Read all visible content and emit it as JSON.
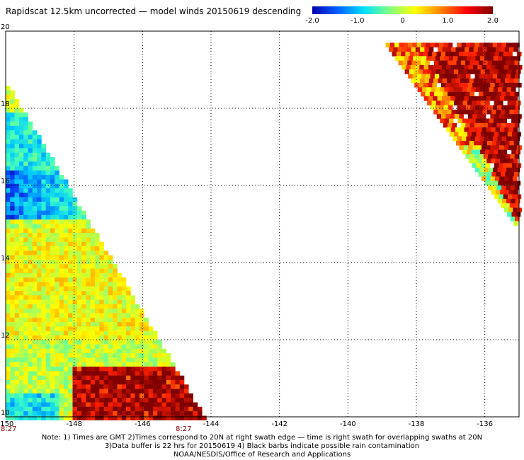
{
  "title": "Rapidscat 12.5km uncorrected — model winds 20150619 descending",
  "colorbar": {
    "ticks": [
      "-2.0",
      "-1.0",
      "0",
      "1.0",
      "2.0"
    ],
    "range": [
      -2.0,
      2.0
    ],
    "colors": [
      "#0000b0",
      "#0060ff",
      "#00e0ff",
      "#80ff80",
      "#ffff00",
      "#ff8000",
      "#ff0000",
      "#800000"
    ]
  },
  "map": {
    "lon_range": [
      -150,
      -135
    ],
    "lat_range": [
      10,
      20
    ],
    "x_ticks": [
      "-150",
      "-148",
      "-146",
      "-144",
      "-142",
      "-140",
      "-138",
      "-136"
    ],
    "y_ticks": [
      "20",
      "18",
      "16",
      "14",
      "12",
      "10"
    ],
    "grid": "dotted",
    "swath_times": [
      "8:27",
      "8:27"
    ],
    "swaths": [
      {
        "name": "left",
        "edge_top": {
          "lon": -150,
          "lat": 18.7
        },
        "edge_bottom": {
          "lon": -144.2,
          "lat": 10
        }
      },
      {
        "name": "right",
        "edge_top": {
          "lon": -138.9,
          "lat": 19.7
        },
        "edge_bottom": {
          "lon": -135.1,
          "lat": 15.0
        }
      }
    ]
  },
  "notes": [
    "Note: 1) Times are GMT 2)Times correspond to 20N at right swath edge — time is right swath for overlapping swaths at 20N",
    "3)Data buffer is 22 hrs for 20150619 4) Black barbs indicate possible rain contamination",
    "NOAA/NESDIS/Office of Research and Applications"
  ]
}
